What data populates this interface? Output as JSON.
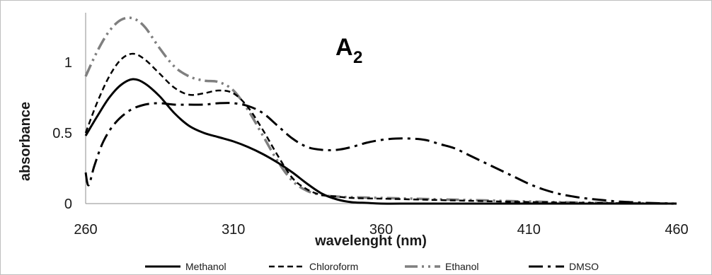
{
  "chart_data": {
    "type": "line",
    "title": "A",
    "title_subscript": "2",
    "xlabel": "wavelenght (nm)",
    "ylabel": "absorbance",
    "xlim": [
      260,
      460
    ],
    "ylim": [
      0,
      1.35
    ],
    "x_ticks": [
      260,
      310,
      360,
      410,
      460
    ],
    "x_tick_labels": [
      "260",
      "310",
      "360",
      "410",
      "460"
    ],
    "y_ticks": [
      0,
      0.5,
      1
    ],
    "y_tick_labels": [
      "0",
      "0.5",
      "1"
    ],
    "grid": false,
    "legend_position": "bottom",
    "series": [
      {
        "name": "Methanol",
        "style": "solid",
        "color": "#000000",
        "x": [
          260,
          264,
          268,
          272,
          276,
          280,
          285,
          290,
          295,
          300,
          305,
          310,
          315,
          320,
          325,
          330,
          335,
          340,
          345,
          350,
          355,
          360,
          370,
          380,
          400,
          420,
          440,
          460
        ],
        "y": [
          0.48,
          0.62,
          0.75,
          0.84,
          0.88,
          0.85,
          0.76,
          0.64,
          0.55,
          0.5,
          0.47,
          0.44,
          0.4,
          0.35,
          0.29,
          0.22,
          0.14,
          0.07,
          0.03,
          0.01,
          0.005,
          0.0,
          0.0,
          0.0,
          0.0,
          0.0,
          0.0,
          0.0
        ]
      },
      {
        "name": "Chloroform",
        "style": "dashed",
        "color": "#000000",
        "x": [
          260,
          264,
          268,
          272,
          276,
          280,
          285,
          290,
          295,
          300,
          305,
          310,
          315,
          320,
          325,
          330,
          335,
          340,
          345,
          350,
          360,
          370,
          380,
          400,
          420,
          440,
          460
        ],
        "y": [
          0.5,
          0.72,
          0.9,
          1.02,
          1.06,
          1.02,
          0.92,
          0.82,
          0.77,
          0.78,
          0.8,
          0.78,
          0.68,
          0.52,
          0.34,
          0.18,
          0.1,
          0.06,
          0.05,
          0.04,
          0.035,
          0.03,
          0.025,
          0.015,
          0.008,
          0.003,
          0.0
        ]
      },
      {
        "name": "Ethanol",
        "style": "dash-dot-dot",
        "color": "#7f7f7f",
        "x": [
          260,
          264,
          268,
          272,
          276,
          280,
          285,
          290,
          295,
          300,
          305,
          310,
          315,
          320,
          325,
          330,
          335,
          340,
          345,
          350,
          360,
          370,
          380,
          400,
          420,
          440,
          460
        ],
        "y": [
          0.9,
          1.08,
          1.22,
          1.3,
          1.31,
          1.25,
          1.1,
          0.97,
          0.9,
          0.87,
          0.86,
          0.8,
          0.66,
          0.48,
          0.3,
          0.16,
          0.09,
          0.06,
          0.05,
          0.045,
          0.04,
          0.035,
          0.03,
          0.02,
          0.01,
          0.004,
          0.0
        ]
      },
      {
        "name": "DMSO",
        "style": "dash-dot",
        "color": "#000000",
        "x": [
          260,
          261,
          263,
          266,
          270,
          275,
          280,
          285,
          290,
          295,
          300,
          305,
          310,
          315,
          320,
          325,
          330,
          335,
          340,
          345,
          350,
          355,
          360,
          365,
          370,
          375,
          380,
          385,
          390,
          395,
          400,
          405,
          410,
          415,
          420,
          425,
          430,
          435,
          440,
          445,
          450,
          460
        ],
        "y": [
          0.22,
          0.13,
          0.27,
          0.44,
          0.57,
          0.66,
          0.7,
          0.71,
          0.7,
          0.7,
          0.7,
          0.71,
          0.71,
          0.69,
          0.64,
          0.55,
          0.46,
          0.4,
          0.38,
          0.38,
          0.4,
          0.43,
          0.45,
          0.46,
          0.46,
          0.45,
          0.42,
          0.39,
          0.34,
          0.29,
          0.24,
          0.19,
          0.14,
          0.1,
          0.07,
          0.05,
          0.035,
          0.025,
          0.015,
          0.01,
          0.005,
          0.0
        ]
      }
    ]
  }
}
